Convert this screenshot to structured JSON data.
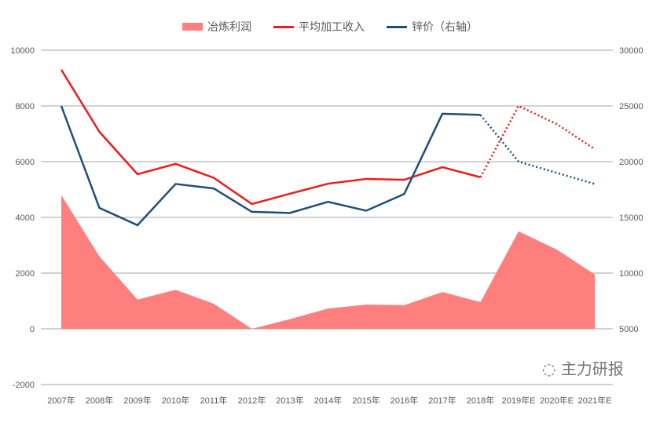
{
  "chart_data": {
    "type": "line",
    "categories": [
      "2007年",
      "2008年",
      "2009年",
      "2010年",
      "2011年",
      "2012年",
      "2013年",
      "2014年",
      "2015年",
      "2016年",
      "2017年",
      "2018年",
      "2019年E",
      "2020年E",
      "2021年E"
    ],
    "left_axis": {
      "range": [
        -2000,
        10000
      ],
      "ticks": [
        "-2000",
        "0",
        "2000",
        "4000",
        "6000",
        "8000",
        "10000"
      ]
    },
    "right_axis": {
      "range": [
        5000,
        30000
      ],
      "ticks": [
        "5000",
        "10000",
        "15000",
        "20000",
        "25000",
        "30000"
      ]
    },
    "grid": true,
    "legend_placement": "top",
    "series": [
      {
        "name": "冶炼利润",
        "kind": "area",
        "axis": "left",
        "color": "#ff7f7f",
        "values": [
          4800,
          2600,
          1050,
          1400,
          900,
          0,
          350,
          730,
          870,
          850,
          1320,
          960,
          3500,
          2850,
          1950
        ]
      },
      {
        "name": "平均加工收入",
        "kind": "line",
        "axis": "left",
        "color": "#ee1c1c",
        "forecast_from_index": 11,
        "values": [
          9300,
          7070,
          5550,
          5920,
          5420,
          4480,
          4850,
          5210,
          5380,
          5350,
          5800,
          5440,
          8000,
          7350,
          6450
        ]
      },
      {
        "name": "锌价（右轴）",
        "kind": "line",
        "axis": "right",
        "color": "#1f4e79",
        "forecast_from_index": 11,
        "values": [
          25000,
          15850,
          14300,
          18000,
          17600,
          15500,
          15400,
          16400,
          15600,
          17100,
          24300,
          24200,
          20000,
          19000,
          18000
        ]
      }
    ]
  },
  "watermark": "主力研报"
}
